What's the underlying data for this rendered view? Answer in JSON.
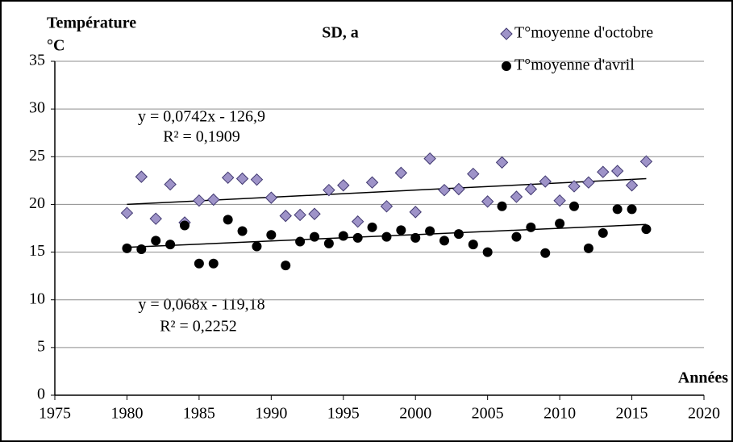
{
  "chart_data": {
    "type": "scatter",
    "title": "SD, a",
    "y_label": [
      "Température",
      "°C"
    ],
    "x_label": "Années",
    "annotations": [
      "y = 0,0742x - 126,9",
      "R² = 0,1909",
      "y = 0,068x - 119,18",
      "R² = 0,2252"
    ],
    "x": [
      1980,
      1981,
      1982,
      1983,
      1984,
      1985,
      1986,
      1987,
      1988,
      1989,
      1990,
      1991,
      1992,
      1993,
      1994,
      1995,
      1996,
      1997,
      1998,
      1999,
      2000,
      2001,
      2002,
      2003,
      2004,
      2005,
      2006,
      2007,
      2008,
      2009,
      2010,
      2011,
      2012,
      2013,
      2014,
      2015,
      2016
    ],
    "series": [
      {
        "name": "T°moyenne d'octobre",
        "color": "#9e93c8",
        "marker": "diamond",
        "values": [
          19.1,
          22.9,
          18.5,
          22.1,
          18.1,
          20.4,
          20.5,
          22.8,
          22.7,
          22.6,
          20.7,
          18.8,
          18.9,
          19.0,
          21.5,
          22.0,
          18.2,
          22.3,
          19.8,
          23.3,
          19.2,
          24.8,
          21.5,
          21.6,
          23.2,
          20.3,
          24.4,
          20.8,
          21.6,
          22.4,
          20.4,
          21.9,
          22.3,
          23.4,
          23.5,
          22.0,
          24.5
        ],
        "trendline": {
          "x": [
            1980,
            2016
          ],
          "values": [
            20.0,
            22.7
          ]
        }
      },
      {
        "name": "T°moyenne d'avril",
        "color": "#000000",
        "marker": "circle",
        "values": [
          15.4,
          15.3,
          16.2,
          15.8,
          17.8,
          13.8,
          13.8,
          18.4,
          17.2,
          15.6,
          16.8,
          13.6,
          16.1,
          16.6,
          15.9,
          16.7,
          16.5,
          17.6,
          16.6,
          17.3,
          16.5,
          17.2,
          16.2,
          16.9,
          15.8,
          15.0,
          19.8,
          16.6,
          17.6,
          14.9,
          18.0,
          19.8,
          15.4,
          17.0,
          19.5,
          19.5,
          17.4
        ],
        "trendline": {
          "x": [
            1980,
            2016
          ],
          "values": [
            15.5,
            17.9
          ]
        }
      }
    ],
    "xlim": [
      1975,
      2020
    ],
    "xticks": [
      1975,
      1980,
      1985,
      1990,
      1995,
      2000,
      2005,
      2010,
      2015,
      2020
    ],
    "ylim": [
      0,
      35
    ],
    "yticks": [
      0,
      5,
      10,
      15,
      20,
      25,
      30,
      35
    ],
    "grid": true,
    "legend": "top-right"
  }
}
